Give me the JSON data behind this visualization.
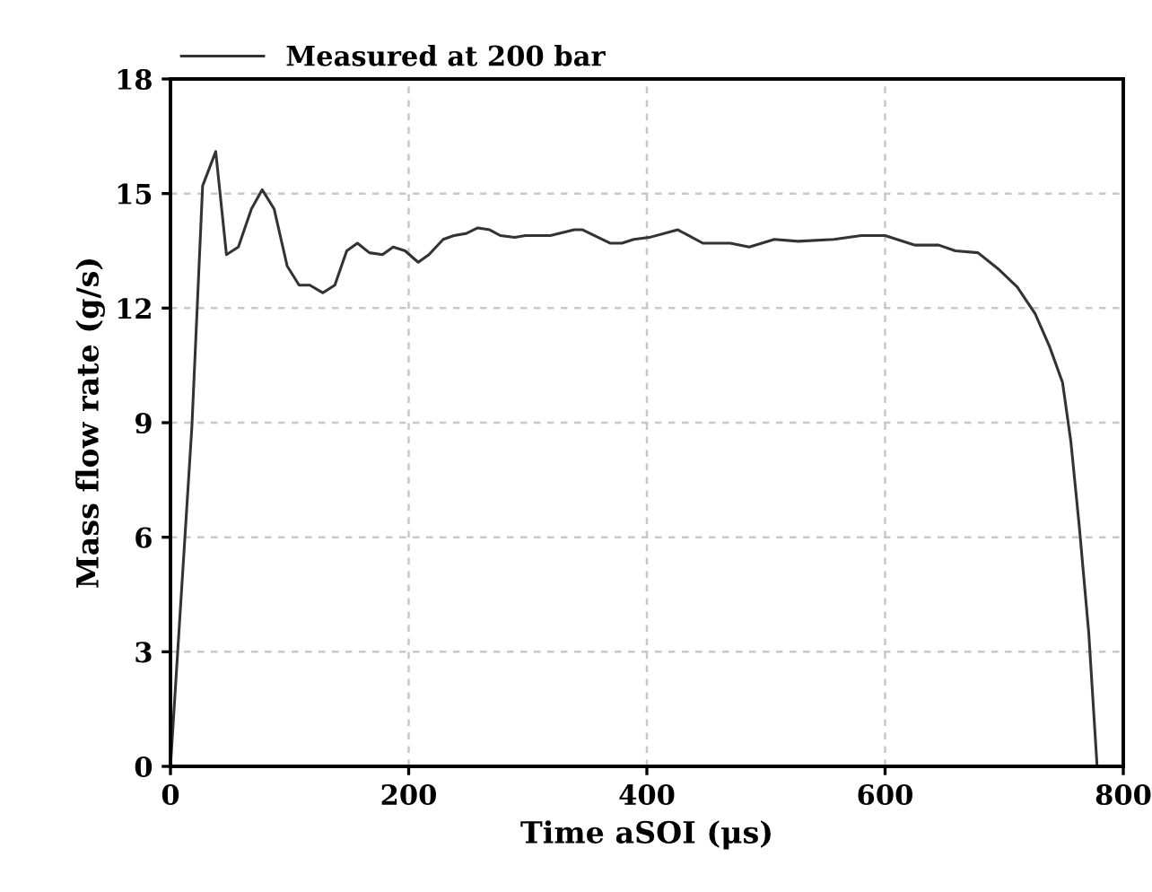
{
  "chart_data": {
    "type": "line",
    "xlabel": "Time aSOI (μs)",
    "ylabel": "Mass flow rate (g/s)",
    "xlim": [
      0,
      800
    ],
    "ylim": [
      0,
      18
    ],
    "xticks": [
      0,
      200,
      400,
      600,
      800
    ],
    "yticks": [
      0,
      3,
      6,
      9,
      12,
      15,
      18
    ],
    "grid": true,
    "legend": "top left",
    "marker": "none",
    "line_style": "solid",
    "series": [
      {
        "name": "Measured at 200 bar",
        "color": "#333333",
        "x": [
          0,
          18,
          27,
          38,
          47,
          57,
          68,
          77,
          87,
          98,
          108,
          117,
          128,
          138,
          148,
          157,
          167,
          178,
          187,
          197,
          208,
          217,
          229,
          238,
          248,
          258,
          268,
          277,
          289,
          298,
          319,
          339,
          346,
          369,
          379,
          389,
          402,
          426,
          447,
          470,
          486,
          507,
          527,
          557,
          580,
          600,
          625,
          645,
          659,
          678,
          696,
          711,
          726,
          738,
          749,
          756,
          763,
          771,
          778
        ],
        "values": [
          0,
          8.9,
          15.2,
          16.1,
          13.4,
          13.6,
          14.6,
          15.1,
          14.6,
          13.1,
          12.6,
          12.6,
          12.4,
          12.6,
          13.5,
          13.7,
          13.45,
          13.4,
          13.6,
          13.5,
          13.2,
          13.4,
          13.8,
          13.9,
          13.95,
          14.1,
          14.05,
          13.9,
          13.85,
          13.9,
          13.9,
          14.05,
          14.05,
          13.7,
          13.7,
          13.8,
          13.85,
          14.05,
          13.7,
          13.7,
          13.6,
          13.8,
          13.75,
          13.8,
          13.9,
          13.9,
          13.65,
          13.65,
          13.5,
          13.45,
          13.0,
          12.55,
          11.85,
          11.0,
          10.05,
          8.5,
          6.3,
          3.5,
          0
        ]
      }
    ]
  }
}
